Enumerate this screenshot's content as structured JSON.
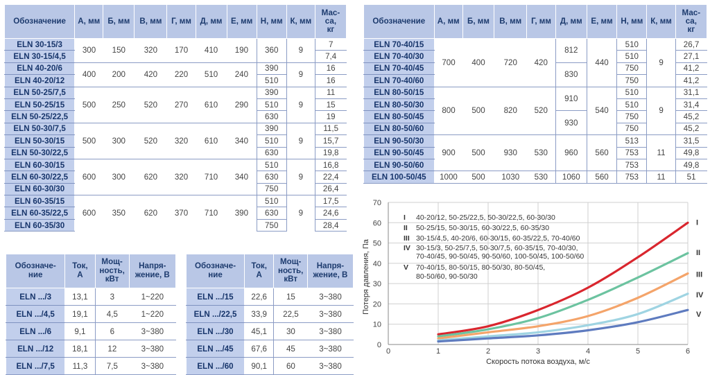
{
  "table_left": {
    "headers": [
      "Обозначение",
      "А, мм",
      "Б, мм",
      "В, мм",
      "Г, мм",
      "Д, мм",
      "Е, мм",
      "Н, мм",
      "К, мм",
      "Мас-са, кг"
    ],
    "models": [
      "ELN 30-15/3",
      "ELN 30-15/4,5",
      "ELN 40-20/6",
      "ELN 40-20/12",
      "ELN 50-25/7,5",
      "ELN 50-25/15",
      "ELN 50-25/22,5",
      "ELN 50-30/7,5",
      "ELN 50-30/15",
      "ELN 50-30/22,5",
      "ELN 60-30/15",
      "ELN 60-30/22,5",
      "ELN 60-30/30",
      "ELN 60-35/15",
      "ELN 60-35/22,5",
      "ELN 60-35/30"
    ],
    "groups": [
      {
        "A": "300",
        "B": "150",
        "V": "320",
        "G": "170",
        "D": "410",
        "E": "190",
        "H": [
          "360"
        ],
        "K": "9",
        "mass": [
          "7",
          "7,4"
        ]
      },
      {
        "A": "400",
        "B": "200",
        "V": "420",
        "G": "220",
        "D": "510",
        "E": "240",
        "H": [
          "390",
          "510"
        ],
        "K": "9",
        "mass": [
          "16",
          "16"
        ]
      },
      {
        "A": "500",
        "B": "250",
        "V": "520",
        "G": "270",
        "D": "610",
        "E": "290",
        "H": [
          "390",
          "510",
          "630"
        ],
        "K": "9",
        "mass": [
          "11",
          "15",
          "19"
        ]
      },
      {
        "A": "500",
        "B": "300",
        "V": "520",
        "G": "320",
        "D": "610",
        "E": "340",
        "H": [
          "390",
          "510",
          "630"
        ],
        "K": "9",
        "mass": [
          "11,5",
          "15,7",
          "19,8"
        ]
      },
      {
        "A": "600",
        "B": "300",
        "V": "620",
        "G": "320",
        "D": "710",
        "E": "340",
        "H": [
          "510",
          "630",
          "750"
        ],
        "K": "9",
        "mass": [
          "16,8",
          "22,4",
          "26,4"
        ]
      },
      {
        "A": "600",
        "B": "350",
        "V": "620",
        "G": "370",
        "D": "710",
        "E": "390",
        "H": [
          "510",
          "630",
          "750"
        ],
        "K": "9",
        "mass": [
          "17,5",
          "24,6",
          "28,4"
        ]
      }
    ]
  },
  "table_right": {
    "headers": [
      "Обозначение",
      "А, мм",
      "Б, мм",
      "В, мм",
      "Г, мм",
      "Д, мм",
      "Е, мм",
      "Н, мм",
      "К, мм",
      "Мас-са, кг"
    ],
    "models": [
      "ELN 70-40/15",
      "ELN 70-40/30",
      "ELN 70-40/45",
      "ELN 70-40/60",
      "ELN 80-50/15",
      "ELN 80-50/30",
      "ELN 80-50/45",
      "ELN 80-50/60",
      "ELN 90-50/30",
      "ELN 90-50/45",
      "ELN 90-50/60",
      "ELN 100-50/45",
      "ELN 100-50/60"
    ],
    "rows": [
      {
        "A": "700",
        "B": "400",
        "V": "720",
        "G": "420",
        "D": [
          "812",
          "830"
        ],
        "E": "440",
        "H": [
          "510",
          "510",
          "750",
          "750"
        ],
        "K": "9",
        "mass": [
          "26,7",
          "27,1",
          "41,2",
          "41,2"
        ]
      },
      {
        "A": "800",
        "B": "500",
        "V": "820",
        "G": "520",
        "D": [
          "910",
          "930"
        ],
        "E": "540",
        "H": [
          "510",
          "510",
          "750",
          "750"
        ],
        "K": "9",
        "mass": [
          "31,1",
          "31,4",
          "45,2",
          "45,2"
        ]
      },
      {
        "A": "900",
        "B": "500",
        "V": "930",
        "G": "530",
        "D": [
          "960"
        ],
        "E": "560",
        "H": [
          "513",
          "753",
          "753"
        ],
        "K": "11",
        "mass": [
          "31,5",
          "49,8",
          "49,8"
        ]
      },
      {
        "A": "1000",
        "B": "500",
        "V": "1030",
        "G": "530",
        "D": [
          "1060"
        ],
        "E": "560",
        "H": [
          "753"
        ],
        "K": "11",
        "mass": [
          "51"
        ]
      }
    ]
  },
  "electric_left": {
    "headers": [
      "Обозначе-ние",
      "Ток, А",
      "Мощ-ность, кВт",
      "Напря-жение, В"
    ],
    "rows": [
      [
        "ELN .../3",
        "13,1",
        "3",
        "1~220"
      ],
      [
        "ELN .../4,5",
        "19,1",
        "4,5",
        "1~220"
      ],
      [
        "ELN .../6",
        "9,1",
        "6",
        "3~380"
      ],
      [
        "ELN .../12",
        "18,1",
        "12",
        "3~380"
      ],
      [
        "ELN .../7,5",
        "11,3",
        "7,5",
        "3~380"
      ]
    ]
  },
  "electric_right": {
    "headers": [
      "Обозначе-ние",
      "Ток, А",
      "Мощ-ность, кВт",
      "Напря-жение, В"
    ],
    "rows": [
      [
        "ELN .../15",
        "22,6",
        "15",
        "3~380"
      ],
      [
        "ELN .../22,5",
        "33,9",
        "22,5",
        "3~380"
      ],
      [
        "ELN .../30",
        "45,1",
        "30",
        "3~380"
      ],
      [
        "ELN .../45",
        "67,6",
        "45",
        "3~380"
      ],
      [
        "ELN .../60",
        "90,1",
        "60",
        "3~380"
      ]
    ]
  },
  "chart_data": {
    "type": "line",
    "xlabel": "Скорость потока воздуха, м/с",
    "ylabel": "Потеря давления, Па",
    "xlim": [
      0,
      6
    ],
    "ylim": [
      0,
      70
    ],
    "x_ticks": [
      "0",
      "1",
      "2",
      "3",
      "4",
      "5",
      "6"
    ],
    "y_ticks": [
      "0",
      "10",
      "20",
      "30",
      "40",
      "50",
      "60",
      "70"
    ],
    "colors": [
      "#d9262e",
      "#6cc3a0",
      "#f4a46a",
      "#9fd4e2",
      "#5e7bbf"
    ],
    "legend": [
      {
        "id": "I",
        "text": "40-20/12, 50-25/22,5, 50-30/22,5, 60-30/30"
      },
      {
        "id": "II",
        "text": "50-25/15, 50-30/15, 60-30/22,5, 60-35/30"
      },
      {
        "id": "III",
        "text": "30-15/4,5, 40-20/6, 60-30/15, 60-35/22,5, 70-40/60"
      },
      {
        "id": "IV",
        "text": "30-15/3, 50-25/7,5, 50-30/7,5, 60-35/15, 70-40/30, 70-40/45, 90-50/45, 90-50/60, 100-50/45, 100-50/60"
      },
      {
        "id": "V",
        "text": "70-40/15, 80-50/15, 80-50/30, 80-50/45, 80-50/60, 90-50/30"
      }
    ],
    "series": [
      {
        "name": "I",
        "x": [
          1,
          2,
          3,
          4,
          5,
          6
        ],
        "values": [
          5,
          9,
          17,
          28,
          43,
          60
        ]
      },
      {
        "name": "II",
        "x": [
          1,
          2,
          3,
          4,
          5,
          6
        ],
        "values": [
          4,
          7.5,
          13,
          22,
          33,
          45
        ]
      },
      {
        "name": "III",
        "x": [
          1,
          2,
          3,
          4,
          5,
          6
        ],
        "values": [
          3,
          6,
          9,
          14,
          23,
          35
        ]
      },
      {
        "name": "IV",
        "x": [
          1,
          2,
          3,
          4,
          5,
          6
        ],
        "values": [
          2,
          4,
          6,
          9.5,
          15,
          25
        ]
      },
      {
        "name": "V",
        "x": [
          1,
          2,
          3,
          4,
          5,
          6
        ],
        "values": [
          1.5,
          3,
          4.5,
          7,
          11,
          17
        ]
      }
    ]
  }
}
